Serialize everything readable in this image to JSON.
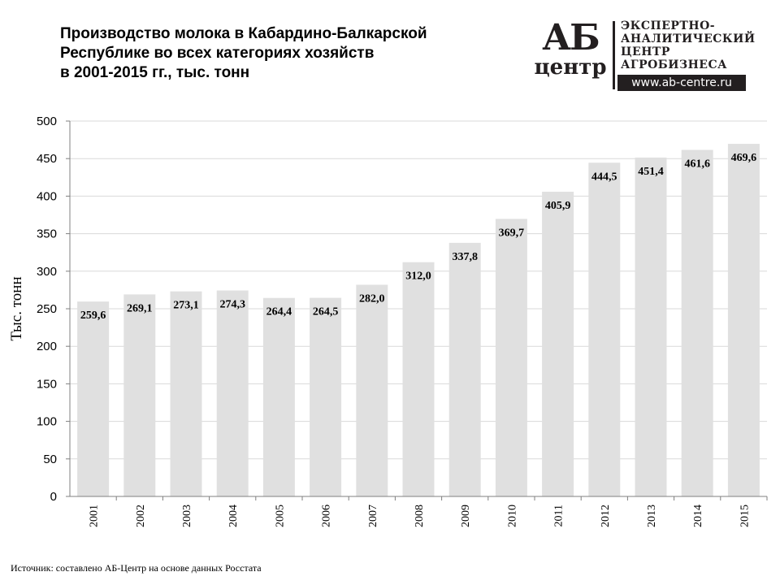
{
  "header": {
    "title_lines": [
      "Производство молока в Кабардино-Балкарской",
      "Республике во всех категориях хозяйств",
      "в 2001-2015 гг., тыс. тонн"
    ]
  },
  "logo": {
    "mark_top": "АБ",
    "mark_bottom": "центр",
    "text_lines": [
      "ЭКСПЕРТНО-",
      "АНАЛИТИЧЕСКИЙ",
      "ЦЕНТР",
      "АГРОБИЗНЕСА"
    ],
    "url": "www.ab-centre.ru"
  },
  "source": "Источник:  составлено АБ-Центр  на основе данных  Росстата",
  "chart_data": {
    "type": "bar",
    "title": "Производство молока в Кабардино-Балкарской Республике во всех категориях хозяйств в 2001-2015 гг., тыс. тонн",
    "xlabel": "",
    "ylabel": "Тыс. тонн",
    "ylim": [
      0,
      500
    ],
    "yticks": [
      0,
      50,
      100,
      150,
      200,
      250,
      300,
      350,
      400,
      450,
      500
    ],
    "grid": true,
    "categories": [
      "2001",
      "2002",
      "2003",
      "2004",
      "2005",
      "2006",
      "2007",
      "2008",
      "2009",
      "2010",
      "2011",
      "2012",
      "2013",
      "2014",
      "2015"
    ],
    "values": [
      259.6,
      269.1,
      273.1,
      274.3,
      264.4,
      264.5,
      282.0,
      312.0,
      337.8,
      369.7,
      405.9,
      444.5,
      451.4,
      461.6,
      469.6
    ],
    "data_labels": [
      "259,6",
      "269,1",
      "273,1",
      "274,3",
      "264,4",
      "264,5",
      "282,0",
      "312,0",
      "337,8",
      "369,7",
      "405,9",
      "444,5",
      "451,4",
      "461,6",
      "469,6"
    ],
    "colors": {
      "bar": "#e0e0e0",
      "grid": "#d9d9d9",
      "axis": "#808080"
    }
  }
}
